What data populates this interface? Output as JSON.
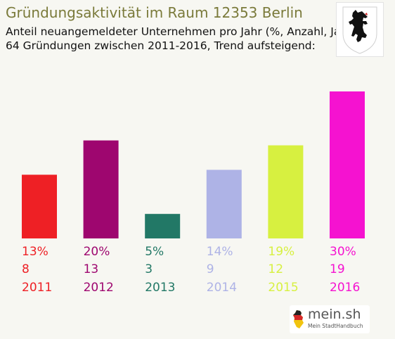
{
  "title": "Gründungsaktivität im Raum 12353 Berlin",
  "subtitle_1": "Anteil neuangemeldeter Unternehmen pro Jahr (%, Anzahl, Jahr)",
  "subtitle_2": "64 Gründungen zwischen 2011-2016, Trend aufsteigend:",
  "logo": {
    "name": "mein.sh",
    "tagline": "Mein StadtHandbuch"
  },
  "coat_of_arms": {
    "icon": "berlin-bear-icon"
  },
  "chart_data": {
    "type": "bar",
    "categories": [
      "2011",
      "2012",
      "2013",
      "2014",
      "2015",
      "2016"
    ],
    "values": [
      13,
      20,
      5,
      14,
      19,
      30
    ],
    "percent_labels": [
      "13%",
      "20%",
      "5%",
      "14%",
      "19%",
      "30%"
    ],
    "counts": [
      "8",
      "13",
      "3",
      "9",
      "12",
      "19"
    ],
    "colors": [
      "#ee2025",
      "#9e066f",
      "#227866",
      "#aeb3e6",
      "#d7f040",
      "#f512d0"
    ],
    "ylim": [
      0,
      30
    ],
    "grid": false,
    "legend": "none"
  }
}
